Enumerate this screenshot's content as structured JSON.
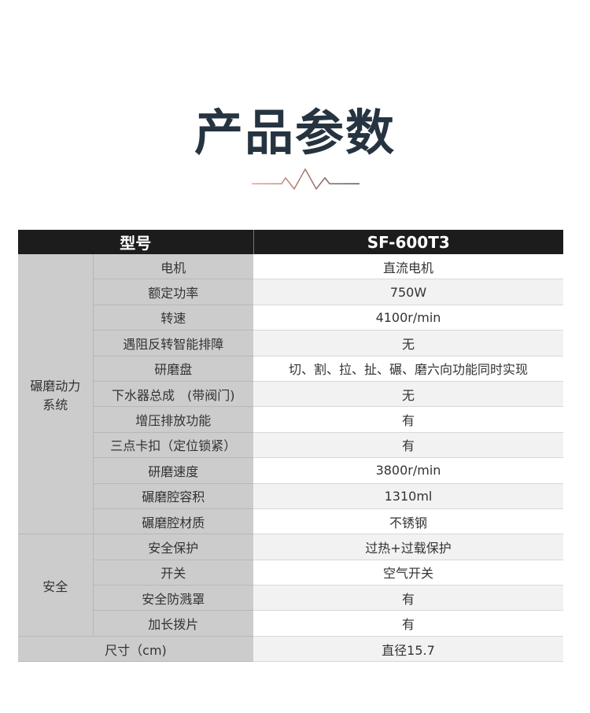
{
  "title": "产品参数",
  "decoration": {
    "colors": [
      "#f59a8a",
      "#555555"
    ]
  },
  "table": {
    "header": {
      "label": "型号",
      "value": "SF-600T3"
    },
    "groups": [
      {
        "name": "碾磨动力\n系统",
        "rows": [
          {
            "label": "电机",
            "value": "直流电机"
          },
          {
            "label": "额定功率",
            "value": "750W"
          },
          {
            "label": "转速",
            "value": "4100r/min"
          },
          {
            "label": "遇阻反转智能排障",
            "value": "无"
          },
          {
            "label": "研磨盘",
            "value": "切、割、拉、扯、碾、磨六向功能同时实现"
          },
          {
            "label": "下水器总成　(带阀门)",
            "value": "无"
          },
          {
            "label": "增压排放功能",
            "value": "有"
          },
          {
            "label": "三点卡扣（定位锁紧）",
            "value": "有"
          },
          {
            "label": "研磨速度",
            "value": "3800r/min"
          },
          {
            "label": "碾磨腔容积",
            "value": "1310ml"
          },
          {
            "label": "碾磨腔材质",
            "value": "不锈钢"
          }
        ]
      },
      {
        "name": "安全",
        "rows": [
          {
            "label": "安全保护",
            "value": "过热+过载保护"
          },
          {
            "label": "开关",
            "value": "空气开关"
          },
          {
            "label": "安全防溅罩",
            "value": "有"
          },
          {
            "label": "加长拨片",
            "value": "有"
          }
        ]
      }
    ],
    "footer": {
      "label": "尺寸（cm)",
      "value": "直径15.7"
    }
  }
}
